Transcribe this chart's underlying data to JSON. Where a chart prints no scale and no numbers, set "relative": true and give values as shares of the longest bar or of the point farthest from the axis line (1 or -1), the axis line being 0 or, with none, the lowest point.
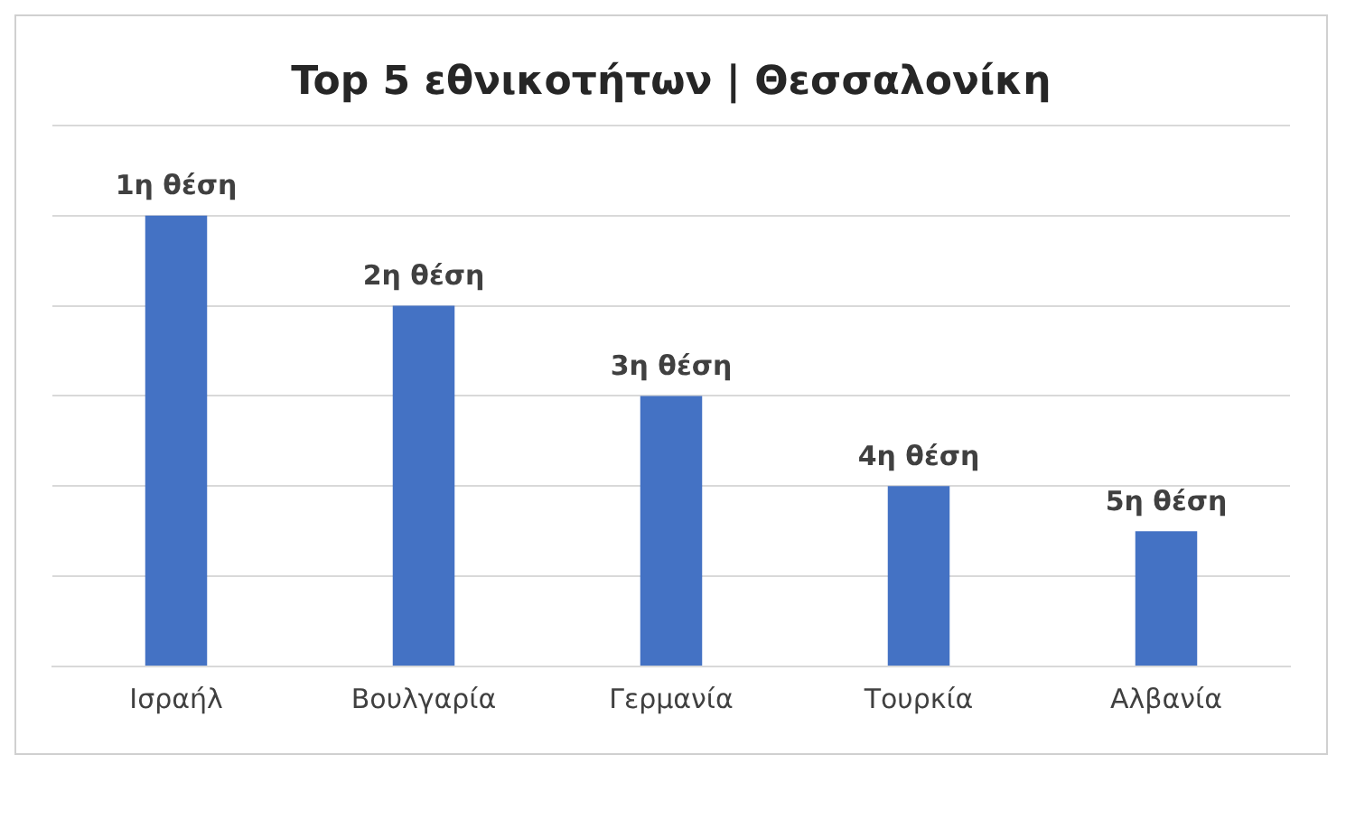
{
  "chart_data": {
    "type": "bar",
    "title": "Top 5 εθνικοτήτων | Θεσσαλονίκη",
    "categories": [
      "Ισραήλ",
      "Βουλγαρία",
      "Γερμανία",
      "Τουρκία",
      "Αλβανία"
    ],
    "values": [
      1,
      0.8,
      0.6,
      0.4,
      0.3
    ],
    "annotations": [
      {
        "text": "1η θέση",
        "x": "Ισραήλ",
        "y": 1
      },
      {
        "text": "2η θέση",
        "x": "Βουλγαρία",
        "y": 0.8
      },
      {
        "text": "3η θέση",
        "x": "Γερμανία",
        "y": 0.6
      },
      {
        "text": "4η θέση",
        "x": "Τουρκία",
        "y": 0.4
      },
      {
        "text": "5η θέση",
        "x": "Αλβανία",
        "y": 0.3
      }
    ],
    "color": "#4472c4",
    "relative": true,
    "grid": "y",
    "legend": false
  }
}
